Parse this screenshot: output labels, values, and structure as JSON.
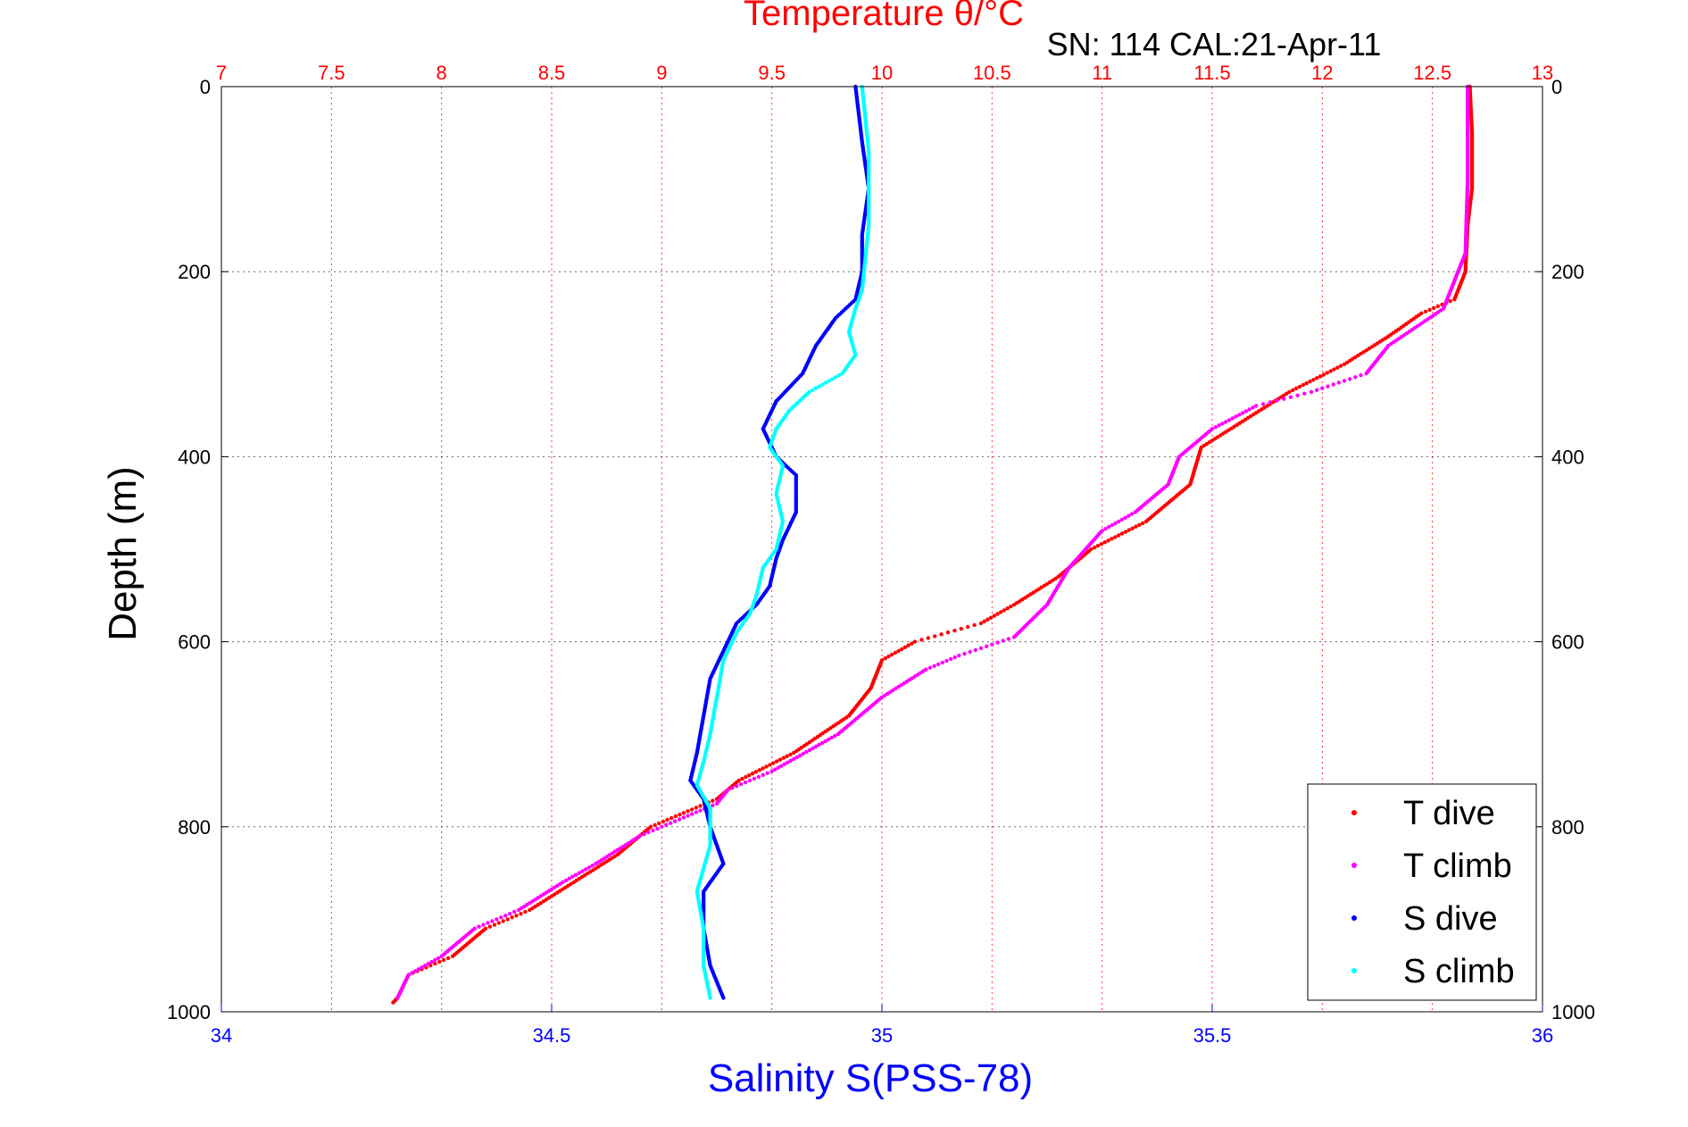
{
  "chart_data": {
    "type": "scatter",
    "title": "Temperature θ/°C",
    "subtitle": "SN: 114  CAL:21-Apr-11",
    "xlabel": "Salinity S(PSS-78)",
    "ylabel": "Depth (m)",
    "top_axis": {
      "label": "Temperature θ/°C",
      "lim": [
        7,
        13
      ],
      "ticks": [
        "7",
        "7.5",
        "8",
        "8.5",
        "9",
        "9.5",
        "10",
        "10.5",
        "11",
        "11.5",
        "12",
        "12.5",
        "13"
      ],
      "color": "#ff0000"
    },
    "bottom_axis": {
      "label": "Salinity S(PSS-78)",
      "lim": [
        34,
        36
      ],
      "ticks": [
        "34",
        "34.5",
        "35",
        "35.5",
        "36"
      ],
      "color": "#0000ff"
    },
    "y_axis": {
      "label": "Depth (m)",
      "lim": [
        0,
        1000
      ],
      "reversed": true,
      "ticks": [
        "0",
        "200",
        "400",
        "600",
        "800",
        "1000"
      ]
    },
    "grid": true,
    "legend_position": "bottom-right",
    "series": [
      {
        "name": "T dive",
        "axis": "top",
        "color": "#ff0000",
        "points": [
          [
            12.67,
            0
          ],
          [
            12.68,
            50
          ],
          [
            12.68,
            110
          ],
          [
            12.66,
            150
          ],
          [
            12.65,
            200
          ],
          [
            12.6,
            230
          ],
          [
            12.45,
            245
          ],
          [
            12.3,
            270
          ],
          [
            12.1,
            300
          ],
          [
            11.85,
            330
          ],
          [
            11.65,
            360
          ],
          [
            11.45,
            390
          ],
          [
            11.4,
            430
          ],
          [
            11.2,
            470
          ],
          [
            10.95,
            500
          ],
          [
            10.8,
            530
          ],
          [
            10.6,
            560
          ],
          [
            10.45,
            580
          ],
          [
            10.15,
            600
          ],
          [
            10.0,
            620
          ],
          [
            9.95,
            650
          ],
          [
            9.85,
            680
          ],
          [
            9.6,
            720
          ],
          [
            9.35,
            750
          ],
          [
            9.25,
            770
          ],
          [
            9.1,
            785
          ],
          [
            8.95,
            800
          ],
          [
            8.8,
            830
          ],
          [
            8.6,
            860
          ],
          [
            8.4,
            890
          ],
          [
            8.2,
            910
          ],
          [
            8.05,
            940
          ],
          [
            7.85,
            960
          ],
          [
            7.8,
            985
          ],
          [
            7.78,
            990
          ]
        ]
      },
      {
        "name": "T climb",
        "axis": "top",
        "color": "#ff00ff",
        "points": [
          [
            12.66,
            0
          ],
          [
            12.66,
            100
          ],
          [
            12.65,
            180
          ],
          [
            12.6,
            210
          ],
          [
            12.55,
            240
          ],
          [
            12.3,
            280
          ],
          [
            12.2,
            310
          ],
          [
            11.95,
            330
          ],
          [
            11.7,
            345
          ],
          [
            11.5,
            370
          ],
          [
            11.35,
            400
          ],
          [
            11.3,
            430
          ],
          [
            11.15,
            460
          ],
          [
            11.0,
            480
          ],
          [
            10.85,
            520
          ],
          [
            10.75,
            560
          ],
          [
            10.6,
            595
          ],
          [
            10.35,
            615
          ],
          [
            10.2,
            630
          ],
          [
            10.0,
            660
          ],
          [
            9.8,
            700
          ],
          [
            9.5,
            740
          ],
          [
            9.3,
            760
          ],
          [
            9.25,
            775
          ],
          [
            9.1,
            790
          ],
          [
            8.9,
            810
          ],
          [
            8.7,
            840
          ],
          [
            8.55,
            860
          ],
          [
            8.35,
            890
          ],
          [
            8.15,
            910
          ],
          [
            8.0,
            940
          ],
          [
            7.85,
            960
          ],
          [
            7.8,
            985
          ]
        ]
      },
      {
        "name": "S dive",
        "axis": "bottom",
        "color": "#0000ff",
        "points": [
          [
            34.96,
            0
          ],
          [
            34.97,
            60
          ],
          [
            34.98,
            110
          ],
          [
            34.97,
            160
          ],
          [
            34.97,
            200
          ],
          [
            34.96,
            230
          ],
          [
            34.93,
            250
          ],
          [
            34.9,
            280
          ],
          [
            34.88,
            310
          ],
          [
            34.84,
            340
          ],
          [
            34.82,
            370
          ],
          [
            34.84,
            400
          ],
          [
            34.87,
            420
          ],
          [
            34.87,
            460
          ],
          [
            34.85,
            490
          ],
          [
            34.84,
            510
          ],
          [
            34.83,
            540
          ],
          [
            34.81,
            560
          ],
          [
            34.78,
            580
          ],
          [
            34.76,
            610
          ],
          [
            34.74,
            640
          ],
          [
            34.73,
            680
          ],
          [
            34.72,
            720
          ],
          [
            34.71,
            750
          ],
          [
            34.73,
            770
          ],
          [
            34.74,
            800
          ],
          [
            34.76,
            840
          ],
          [
            34.73,
            870
          ],
          [
            34.73,
            910
          ],
          [
            34.74,
            950
          ],
          [
            34.76,
            985
          ]
        ]
      },
      {
        "name": "S climb",
        "axis": "bottom",
        "color": "#00ffff",
        "points": [
          [
            34.97,
            0
          ],
          [
            34.98,
            70
          ],
          [
            34.98,
            150
          ],
          [
            34.97,
            220
          ],
          [
            34.96,
            240
          ],
          [
            34.95,
            265
          ],
          [
            34.96,
            290
          ],
          [
            34.94,
            310
          ],
          [
            34.89,
            330
          ],
          [
            34.86,
            350
          ],
          [
            34.84,
            370
          ],
          [
            34.83,
            390
          ],
          [
            34.85,
            410
          ],
          [
            34.84,
            440
          ],
          [
            34.85,
            470
          ],
          [
            34.84,
            500
          ],
          [
            34.82,
            520
          ],
          [
            34.81,
            550
          ],
          [
            34.8,
            570
          ],
          [
            34.78,
            590
          ],
          [
            34.76,
            620
          ],
          [
            34.75,
            660
          ],
          [
            34.74,
            700
          ],
          [
            34.73,
            730
          ],
          [
            34.72,
            755
          ],
          [
            34.74,
            780
          ],
          [
            34.74,
            820
          ],
          [
            34.72,
            870
          ],
          [
            34.73,
            910
          ],
          [
            34.73,
            950
          ],
          [
            34.74,
            985
          ]
        ]
      }
    ]
  }
}
